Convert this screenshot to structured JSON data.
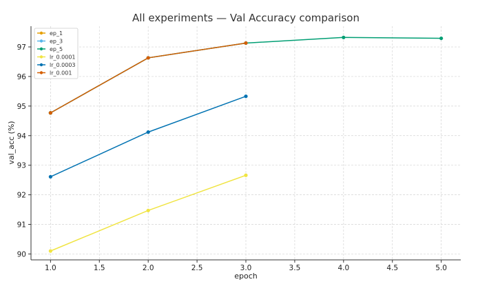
{
  "chart_data": {
    "type": "line",
    "title": "All experiments — Val Accuracy comparison",
    "xlabel": "epoch",
    "ylabel": "val_acc (%)",
    "xlim": [
      0.8,
      5.2
    ],
    "ylim": [
      89.8,
      97.7
    ],
    "xticks": [
      1.0,
      1.5,
      2.0,
      2.5,
      3.0,
      3.5,
      4.0,
      4.5,
      5.0
    ],
    "xtick_labels": [
      "1.0",
      "1.5",
      "2.0",
      "2.5",
      "3.0",
      "3.5",
      "4.0",
      "4.5",
      "5.0"
    ],
    "yticks": [
      90,
      91,
      92,
      93,
      94,
      95,
      96,
      97
    ],
    "ytick_labels": [
      "90",
      "91",
      "92",
      "93",
      "94",
      "95",
      "96",
      "97"
    ],
    "grid": true,
    "legend_position": "top-left",
    "series": [
      {
        "name": "ep_1",
        "color": "#E69F00",
        "x": [
          1
        ],
        "y": [
          94.77
        ]
      },
      {
        "name": "ep_3",
        "color": "#56B4E9",
        "x": [
          1,
          2,
          3
        ],
        "y": [
          94.77,
          96.63,
          97.13
        ]
      },
      {
        "name": "ep_5",
        "color": "#009E73",
        "x": [
          1,
          2,
          3,
          4,
          5
        ],
        "y": [
          94.77,
          96.63,
          97.13,
          97.32,
          97.29
        ]
      },
      {
        "name": "lr_0.0001",
        "color": "#F0E442",
        "x": [
          1,
          2,
          3
        ],
        "y": [
          90.1,
          91.47,
          92.66
        ]
      },
      {
        "name": "lr_0.0003",
        "color": "#0072B2",
        "x": [
          1,
          2,
          3
        ],
        "y": [
          92.61,
          94.12,
          95.33
        ]
      },
      {
        "name": "lr_0.001",
        "color": "#D55E00",
        "x": [
          1,
          2,
          3
        ],
        "y": [
          94.77,
          96.63,
          97.13
        ]
      }
    ]
  }
}
